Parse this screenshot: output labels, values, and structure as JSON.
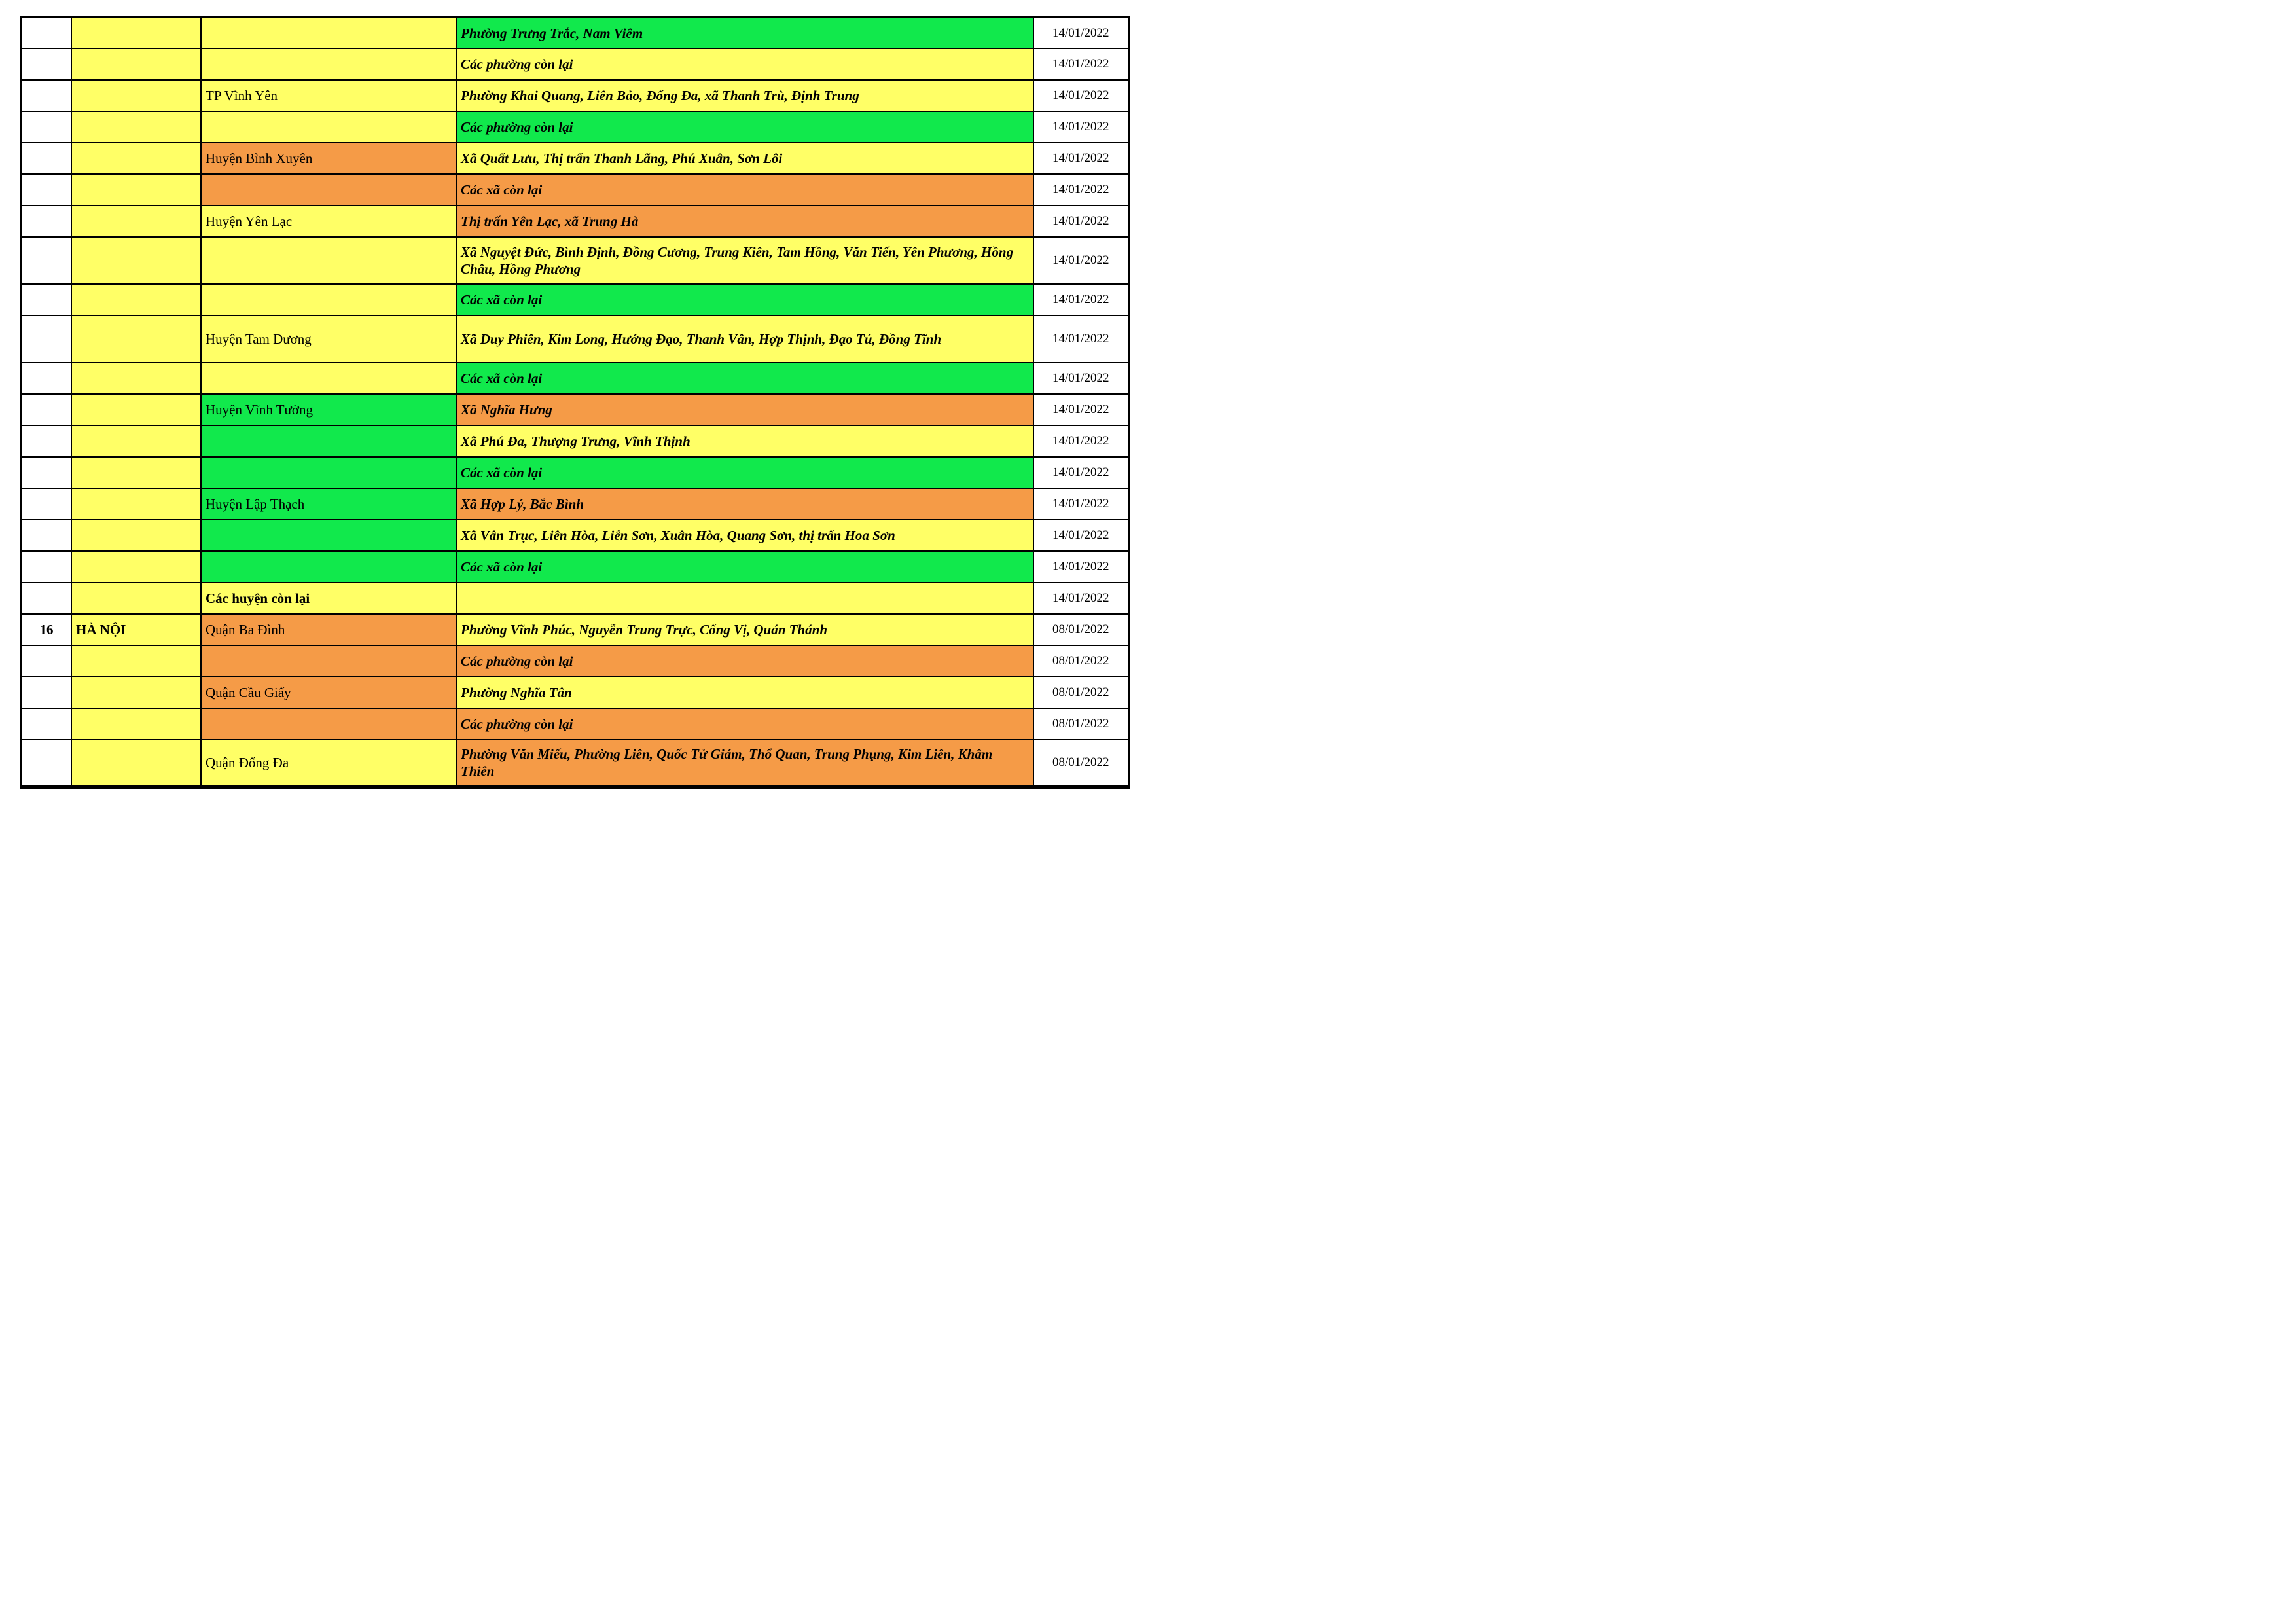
{
  "document": {
    "type": "covid-risk-level-table",
    "colors": {
      "yellow": "#FFFF66",
      "green": "#11E94C",
      "orange": "#F59B47",
      "white": "#FFFFFF",
      "border": "#000000"
    },
    "columns": [
      "no",
      "province",
      "district",
      "wards",
      "date"
    ],
    "rows": [
      {
        "no": "",
        "no_bg": "white",
        "province": "",
        "province_bg": "yellow",
        "district": "",
        "district_bg": "yellow",
        "district_bold": false,
        "wards": "Phường Trưng Trắc, Nam Viêm",
        "wards_bg": "green",
        "date": "14/01/2022",
        "tall": false
      },
      {
        "no": "",
        "no_bg": "white",
        "province": "",
        "province_bg": "yellow",
        "district": "",
        "district_bg": "yellow",
        "district_bold": false,
        "wards": "Các phường còn lại",
        "wards_bg": "yellow",
        "date": "14/01/2022",
        "tall": false
      },
      {
        "no": "",
        "no_bg": "white",
        "province": "",
        "province_bg": "yellow",
        "district": "TP Vĩnh Yên",
        "district_bg": "yellow",
        "district_bold": false,
        "wards": "Phường Khai Quang, Liên Bảo, Đống Đa, xã Thanh Trù, Định Trung",
        "wards_bg": "yellow",
        "date": "14/01/2022",
        "tall": false
      },
      {
        "no": "",
        "no_bg": "white",
        "province": "",
        "province_bg": "yellow",
        "district": "",
        "district_bg": "yellow",
        "district_bold": false,
        "wards": "Các phường còn lại",
        "wards_bg": "green",
        "date": "14/01/2022",
        "tall": false
      },
      {
        "no": "",
        "no_bg": "white",
        "province": "",
        "province_bg": "yellow",
        "district": "Huyện Bình Xuyên",
        "district_bg": "orange",
        "district_bold": false,
        "wards": "Xã Quất Lưu, Thị trấn Thanh Lãng, Phú Xuân, Sơn Lôi",
        "wards_bg": "yellow",
        "date": "14/01/2022",
        "tall": false
      },
      {
        "no": "",
        "no_bg": "white",
        "province": "",
        "province_bg": "yellow",
        "district": "",
        "district_bg": "orange",
        "district_bold": false,
        "wards": "Các xã còn lại",
        "wards_bg": "orange",
        "date": "14/01/2022",
        "tall": false
      },
      {
        "no": "",
        "no_bg": "white",
        "province": "",
        "province_bg": "yellow",
        "district": "Huyện Yên Lạc",
        "district_bg": "yellow",
        "district_bold": false,
        "wards": "Thị trấn Yên Lạc, xã Trung Hà",
        "wards_bg": "orange",
        "date": "14/01/2022",
        "tall": false
      },
      {
        "no": "",
        "no_bg": "white",
        "province": "",
        "province_bg": "yellow",
        "district": "",
        "district_bg": "yellow",
        "district_bold": false,
        "wards": "Xã Nguyệt Đức, Bình Định, Đồng Cương, Trung Kiên, Tam Hồng, Văn Tiến, Yên Phương, Hồng Châu, Hồng Phương",
        "wards_bg": "yellow",
        "date": "14/01/2022",
        "tall": true
      },
      {
        "no": "",
        "no_bg": "white",
        "province": "",
        "province_bg": "yellow",
        "district": "",
        "district_bg": "yellow",
        "district_bold": false,
        "wards": "Các xã còn lại",
        "wards_bg": "green",
        "date": "14/01/2022",
        "tall": false
      },
      {
        "no": "",
        "no_bg": "white",
        "province": "",
        "province_bg": "yellow",
        "district": "Huyện Tam Dương",
        "district_bg": "yellow",
        "district_bold": false,
        "wards": "Xã Duy Phiên, Kim Long, Hướng Đạo, Thanh Vân, Hợp Thịnh, Đạo Tú, Đồng Tĩnh",
        "wards_bg": "yellow",
        "date": "14/01/2022",
        "tall": true
      },
      {
        "no": "",
        "no_bg": "white",
        "province": "",
        "province_bg": "yellow",
        "district": "",
        "district_bg": "yellow",
        "district_bold": false,
        "wards": "Các xã còn lại",
        "wards_bg": "green",
        "date": "14/01/2022",
        "tall": false
      },
      {
        "no": "",
        "no_bg": "white",
        "province": "",
        "province_bg": "yellow",
        "district": "Huyện Vĩnh Tường",
        "district_bg": "green",
        "district_bold": false,
        "wards": "Xã Nghĩa Hưng",
        "wards_bg": "orange",
        "date": "14/01/2022",
        "tall": false
      },
      {
        "no": "",
        "no_bg": "white",
        "province": "",
        "province_bg": "yellow",
        "district": "",
        "district_bg": "green",
        "district_bold": false,
        "wards": "Xã Phú Đa, Thượng Trưng, Vĩnh Thịnh",
        "wards_bg": "yellow",
        "date": "14/01/2022",
        "tall": false
      },
      {
        "no": "",
        "no_bg": "white",
        "province": "",
        "province_bg": "yellow",
        "district": "",
        "district_bg": "green",
        "district_bold": false,
        "wards": "Các xã còn lại",
        "wards_bg": "green",
        "date": "14/01/2022",
        "tall": false
      },
      {
        "no": "",
        "no_bg": "white",
        "province": "",
        "province_bg": "yellow",
        "district": "Huyện Lập Thạch",
        "district_bg": "green",
        "district_bold": false,
        "wards": "Xã Hợp Lý, Bắc Bình",
        "wards_bg": "orange",
        "date": "14/01/2022",
        "tall": false
      },
      {
        "no": "",
        "no_bg": "white",
        "province": "",
        "province_bg": "yellow",
        "district": "",
        "district_bg": "green",
        "district_bold": false,
        "wards": "Xã Vân Trục, Liên Hòa, Liễn Sơn, Xuân Hòa, Quang Sơn, thị trấn Hoa Sơn",
        "wards_bg": "yellow",
        "date": "14/01/2022",
        "tall": false
      },
      {
        "no": "",
        "no_bg": "white",
        "province": "",
        "province_bg": "yellow",
        "district": "",
        "district_bg": "green",
        "district_bold": false,
        "wards": "Các xã còn lại",
        "wards_bg": "green",
        "date": "14/01/2022",
        "tall": false
      },
      {
        "no": "",
        "no_bg": "white",
        "province": "",
        "province_bg": "yellow",
        "district": "Các huyện còn lại",
        "district_bg": "yellow",
        "district_bold": true,
        "wards": "",
        "wards_bg": "yellow",
        "date": "14/01/2022",
        "tall": false
      },
      {
        "no": "16",
        "no_bg": "white",
        "province": "HÀ NỘI",
        "province_bg": "yellow",
        "district": "Quận Ba Đình",
        "district_bg": "orange",
        "district_bold": false,
        "wards": "Phường Vĩnh Phúc, Nguyễn Trung Trực, Cống Vị, Quán Thánh",
        "wards_bg": "yellow",
        "date": "08/01/2022",
        "tall": false
      },
      {
        "no": "",
        "no_bg": "white",
        "province": "",
        "province_bg": "yellow",
        "district": "",
        "district_bg": "orange",
        "district_bold": false,
        "wards": "Các phường còn lại",
        "wards_bg": "orange",
        "date": "08/01/2022",
        "tall": false
      },
      {
        "no": "",
        "no_bg": "white",
        "province": "",
        "province_bg": "yellow",
        "district": "Quận Cầu Giấy",
        "district_bg": "orange",
        "district_bold": false,
        "wards": "Phường Nghĩa Tân",
        "wards_bg": "yellow",
        "date": "08/01/2022",
        "tall": false
      },
      {
        "no": "",
        "no_bg": "white",
        "province": "",
        "province_bg": "yellow",
        "district": "",
        "district_bg": "orange",
        "district_bold": false,
        "wards": "Các phường còn lại",
        "wards_bg": "orange",
        "date": "08/01/2022",
        "tall": false
      },
      {
        "no": "",
        "no_bg": "white",
        "province": "",
        "province_bg": "yellow",
        "district": "Quận Đống Đa",
        "district_bg": "yellow",
        "district_bold": false,
        "wards": "Phường Văn Miếu, Phường Liên, Quốc Tử Giám, Thổ Quan, Trung Phụng, Kim Liên, Khâm Thiên",
        "wards_bg": "orange",
        "date": "08/01/2022",
        "tall": true
      }
    ]
  }
}
